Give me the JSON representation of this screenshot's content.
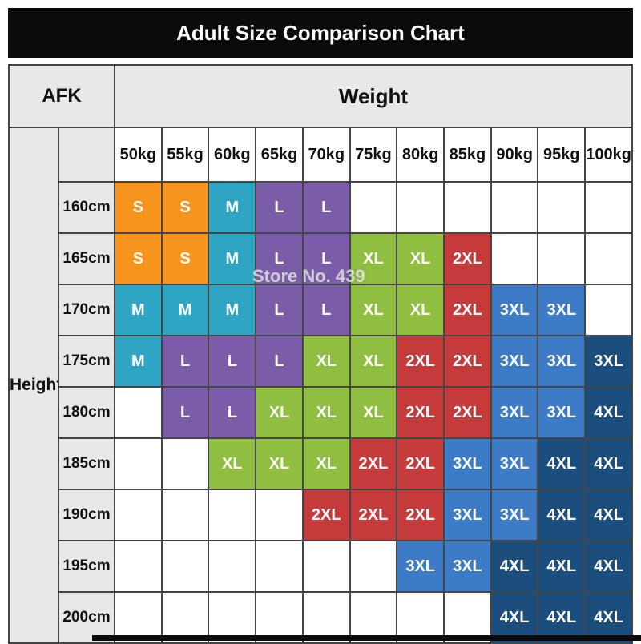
{
  "page": {
    "title": "Adult Size Comparison Chart",
    "corner_label": "AFK",
    "weight_axis_label": "Weight",
    "height_axis_label": "Height",
    "watermark": "Store No. 439"
  },
  "colors": {
    "S": "#F7941E",
    "M": "#2FA5C4",
    "L": "#7A5CA8",
    "XL": "#8FBE41",
    "2XL": "#C53B3B",
    "3XL": "#3D7BC6",
    "3XL-dark": "#1C4E7D",
    "4XL": "#1C4E7D",
    "empty": "#FFFFFF",
    "header_bg": "#E8E8E8",
    "title_bg": "#0B0B0B",
    "grid_line": "#454545"
  },
  "chart_data": {
    "type": "table",
    "title": "Adult Size Comparison Chart",
    "xlabel": "Weight",
    "ylabel": "Height",
    "columns": [
      "50kg",
      "55kg",
      "60kg",
      "65kg",
      "70kg",
      "75kg",
      "80kg",
      "85kg",
      "90kg",
      "95kg",
      "100kg"
    ],
    "rows": [
      {
        "height": "160cm",
        "cells": [
          "S",
          "S",
          "M",
          "L",
          "L",
          "",
          "",
          "",
          "",
          "",
          ""
        ]
      },
      {
        "height": "165cm",
        "cells": [
          "S",
          "S",
          "M",
          "L",
          "L",
          "XL",
          "XL",
          "2XL",
          "",
          "",
          ""
        ]
      },
      {
        "height": "170cm",
        "cells": [
          "M",
          "M",
          "M",
          "L",
          "L",
          "XL",
          "XL",
          "2XL",
          "3XL",
          "3XL",
          ""
        ]
      },
      {
        "height": "175cm",
        "cells": [
          "M",
          "L",
          "L",
          "L",
          "XL",
          "XL",
          "2XL",
          "2XL",
          "3XL",
          "3XL",
          "3XL-dark"
        ]
      },
      {
        "height": "180cm",
        "cells": [
          "",
          "L",
          "L",
          "XL",
          "XL",
          "XL",
          "2XL",
          "2XL",
          "3XL",
          "3XL",
          "4XL"
        ]
      },
      {
        "height": "185cm",
        "cells": [
          "",
          "",
          "XL",
          "XL",
          "XL",
          "2XL",
          "2XL",
          "3XL",
          "3XL",
          "4XL",
          "4XL"
        ]
      },
      {
        "height": "190cm",
        "cells": [
          "",
          "",
          "",
          "",
          "2XL",
          "2XL",
          "2XL",
          "3XL",
          "3XL",
          "4XL",
          "4XL"
        ]
      },
      {
        "height": "195cm",
        "cells": [
          "",
          "",
          "",
          "",
          "",
          "",
          "3XL",
          "3XL",
          "4XL",
          "4XL",
          "4XL"
        ]
      },
      {
        "height": "200cm",
        "cells": [
          "",
          "",
          "",
          "",
          "",
          "",
          "",
          "",
          "4XL",
          "4XL",
          "4XL"
        ]
      }
    ]
  }
}
